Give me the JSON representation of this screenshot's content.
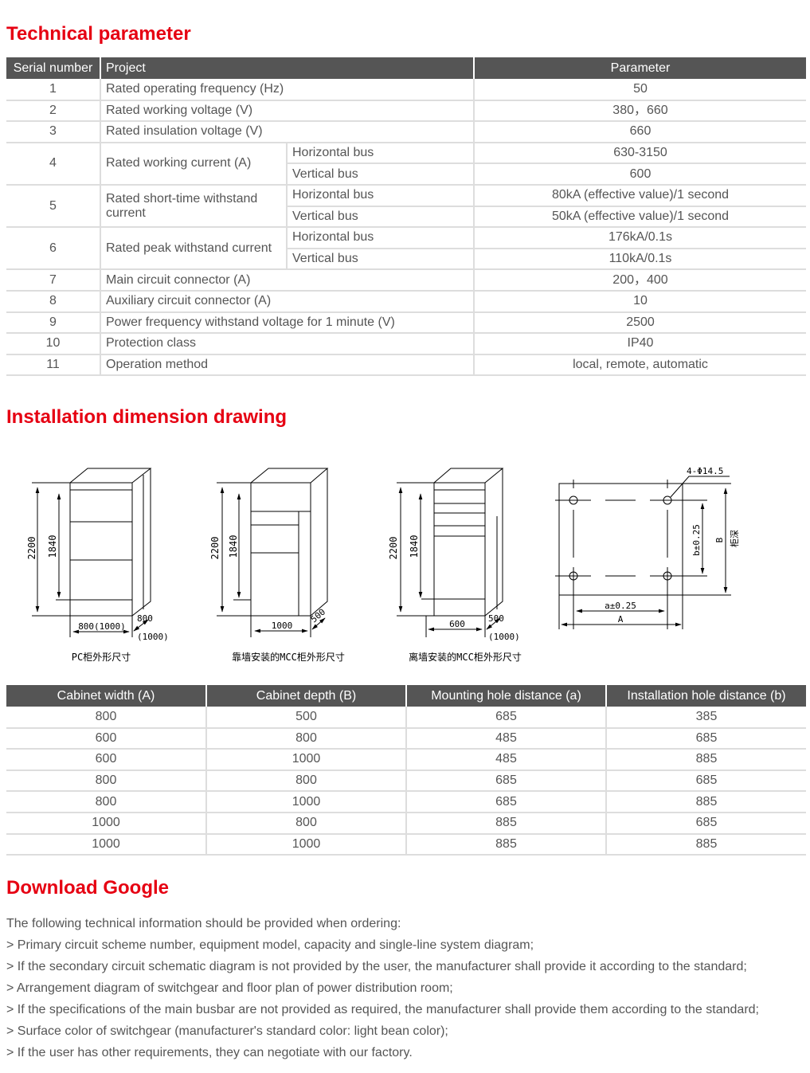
{
  "section1": {
    "title": "Technical parameter"
  },
  "tech_table": {
    "headers": [
      "Serial number",
      "Project",
      "Parameter"
    ],
    "rows": [
      {
        "no": "1",
        "project": "Rated operating frequency (Hz)",
        "value": "50"
      },
      {
        "no": "2",
        "project": "Rated working voltage (V)",
        "value": "380，660"
      },
      {
        "no": "3",
        "project": "Rated insulation voltage (V)",
        "value": "660"
      },
      {
        "no": "4",
        "project": "Rated working current (A)",
        "sub": [
          {
            "label": "Horizontal bus",
            "value": "630-3150"
          },
          {
            "label": "Vertical bus",
            "value": "600"
          }
        ]
      },
      {
        "no": "5",
        "project": "Rated short-time withstand current",
        "sub": [
          {
            "label": "Horizontal bus",
            "value": "80kA (effective value)/1 second"
          },
          {
            "label": "Vertical bus",
            "value": "50kA (effective value)/1 second"
          }
        ]
      },
      {
        "no": "6",
        "project": "Rated peak withstand current",
        "sub": [
          {
            "label": "Horizontal bus",
            "value": "176kA/0.1s"
          },
          {
            "label": "Vertical bus",
            "value": "110kA/0.1s"
          }
        ]
      },
      {
        "no": "7",
        "project": "Main circuit connector (A)",
        "value": "200，400"
      },
      {
        "no": "8",
        "project": "Auxiliary circuit connector (A)",
        "value": "10"
      },
      {
        "no": "9",
        "project": "Power frequency withstand voltage for 1 minute (V)",
        "value": "2500"
      },
      {
        "no": "10",
        "project": "Protection class",
        "value": "IP40"
      },
      {
        "no": "11",
        "project": "Operation method",
        "value": "local, remote, automatic"
      }
    ]
  },
  "section2": {
    "title": "Installation dimension drawing"
  },
  "drawing": {
    "d1": {
      "h1": "2200",
      "h2": "1840",
      "width": "800(1000)",
      "depth": "800",
      "depth2": "(1000)",
      "caption": "PC柜外形尺寸"
    },
    "d2": {
      "h1": "2200",
      "h2": "1840",
      "width": "1000",
      "depth": "500",
      "caption": "靠墙安装的MCC柜外形尺寸"
    },
    "d3": {
      "h1": "2200",
      "h2": "1840",
      "width": "600",
      "depth": "500",
      "depth2": "(1000)",
      "caption": "离墙安装的MCC柜外形尺寸"
    },
    "d4": {
      "holes": "4-Φ14.5",
      "b": "b±0.25",
      "B": "B",
      "depth_cn": "柜深",
      "a": "a±0.25",
      "A": "A"
    }
  },
  "dim_table": {
    "headers": [
      "Cabinet width (A)",
      "Cabinet depth (B)",
      "Mounting hole distance (a)",
      "Installation hole distance (b)"
    ],
    "rows": [
      [
        "800",
        "500",
        "685",
        "385"
      ],
      [
        "600",
        "800",
        "485",
        "685"
      ],
      [
        "600",
        "1000",
        "485",
        "885"
      ],
      [
        "800",
        "800",
        "685",
        "685"
      ],
      [
        "800",
        "1000",
        "685",
        "885"
      ],
      [
        "1000",
        "800",
        "885",
        "685"
      ],
      [
        "1000",
        "1000",
        "885",
        "885"
      ]
    ]
  },
  "section3": {
    "title": "Download Google",
    "lines": [
      "The following technical information should be provided when ordering:",
      "> Primary circuit scheme number, equipment model, capacity and single-line system diagram;",
      "> If the secondary circuit schematic diagram is not provided by the user, the manufacturer shall provide it according to the standard;",
      "> Arrangement diagram of switchgear and floor plan of power distribution room;",
      "> If the specifications of the main busbar are not provided as required, the manufacturer shall provide them according to the standard;",
      "> Surface color of switchgear (manufacturer's standard color: light bean color);",
      "> If the user has other requirements, they can negotiate with our factory."
    ]
  }
}
